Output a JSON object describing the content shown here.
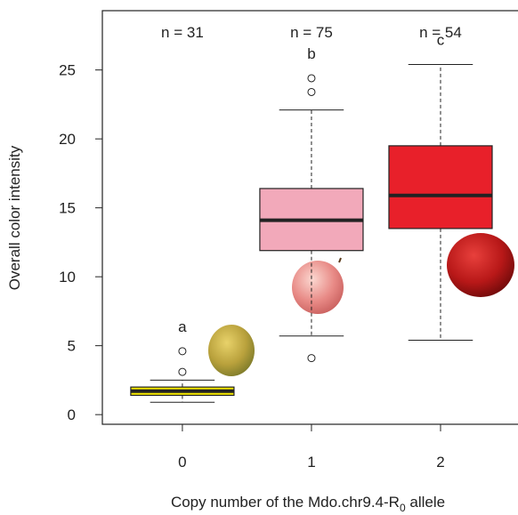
{
  "chart_data": {
    "type": "box",
    "ylabel": "Overall color intensity",
    "xlabel": {
      "text": "Copy number of the Mdo.chr9.4-R",
      "subscript": "0",
      "suffix": " allele"
    },
    "x": [
      0,
      1,
      2
    ],
    "xlim": [
      -0.62,
      2.6
    ],
    "xticks": [
      0,
      1,
      2
    ],
    "ylim": [
      -0.7,
      29.3
    ],
    "yticks": [
      0,
      5,
      10,
      15,
      20,
      25
    ],
    "boxes": [
      {
        "min": 0.9,
        "q1": 1.4,
        "median": 1.7,
        "q3": 2.0,
        "max": 2.5,
        "outliers": [
          3.1,
          4.6
        ],
        "color": "#f2e600",
        "n_label": "n = 31",
        "letter": "a"
      },
      {
        "min": 5.7,
        "q1": 11.9,
        "median": 14.1,
        "q3": 16.4,
        "max": 22.1,
        "outliers": [
          4.1,
          23.4,
          24.4
        ],
        "color": "#f2a9ba",
        "n_label": "n = 75",
        "letter": "b"
      },
      {
        "min": 5.4,
        "q1": 13.5,
        "median": 15.9,
        "q3": 19.5,
        "max": 25.4,
        "outliers": [],
        "color": "#e8202a",
        "n_label": "n = 54",
        "letter": "c"
      }
    ]
  }
}
